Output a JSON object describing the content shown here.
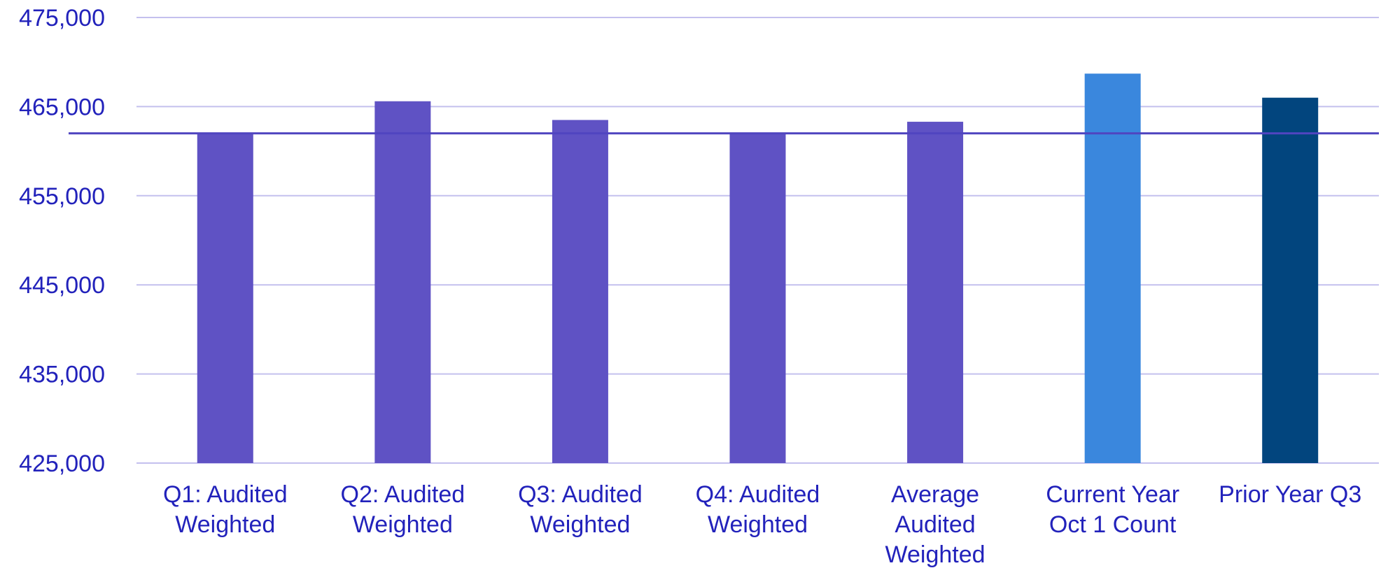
{
  "chart_data": {
    "type": "bar",
    "categories": [
      [
        "Q1: Audited",
        "Weighted"
      ],
      [
        "Q2: Audited",
        "Weighted"
      ],
      [
        "Q3: Audited",
        "Weighted"
      ],
      [
        "Q4: Audited",
        "Weighted"
      ],
      [
        "Average",
        "Audited",
        "Weighted"
      ],
      [
        "Current Year",
        "Oct 1 Count"
      ],
      [
        "Prior Year Q3"
      ]
    ],
    "values": [
      462000,
      465600,
      463500,
      462000,
      463300,
      468700,
      466000
    ],
    "bar_colors": [
      "#5f52c4",
      "#5f52c4",
      "#5f52c4",
      "#5f52c4",
      "#5f52c4",
      "#3a87dd",
      "#02457e"
    ],
    "reference_line": {
      "value": 462000,
      "color": "#5045c0"
    },
    "ylim": [
      425000,
      475000
    ],
    "y_ticks": [
      425000,
      435000,
      445000,
      455000,
      465000,
      475000
    ],
    "y_tick_labels": [
      "425,000",
      "435,000",
      "445,000",
      "455,000",
      "465,000",
      "475,000"
    ],
    "grid": true,
    "legend": "none",
    "title": "",
    "xlabel": "",
    "ylabel": ""
  }
}
